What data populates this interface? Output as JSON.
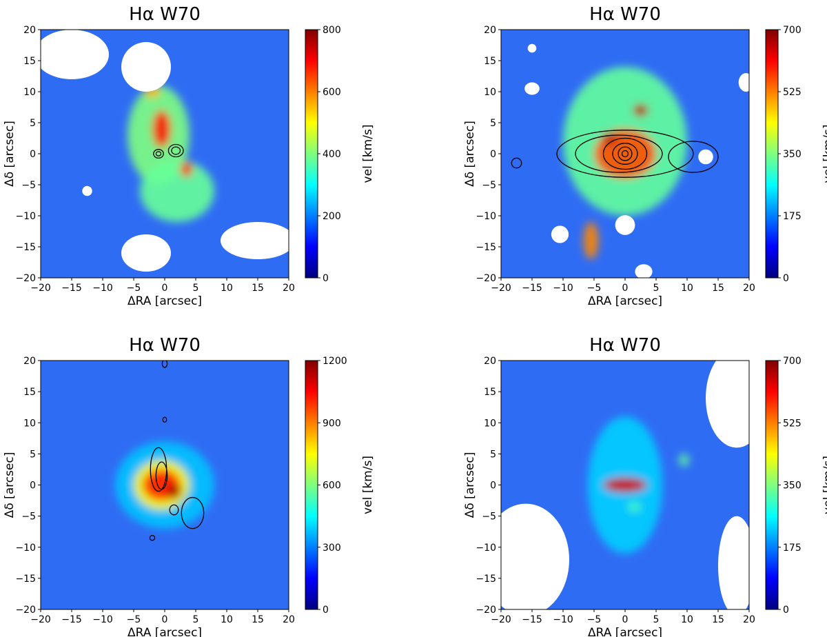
{
  "figure": {
    "panel_count": 4,
    "colormap": "jet",
    "colormap_stops": [
      "#00007f",
      "#0000ff",
      "#007fff",
      "#00ffff",
      "#7fff7f",
      "#ffff00",
      "#ff7f00",
      "#ff0000",
      "#7f0000"
    ],
    "map_background": "#2f6cf4"
  },
  "chart_data": [
    {
      "type": "heatmap",
      "title": "Hα W70",
      "xlabel": "ΔRA [arcsec]",
      "ylabel": "Δδ [arcsec]",
      "xlim": [
        -20,
        20
      ],
      "ylim": [
        -20,
        20
      ],
      "xticks": [
        -20,
        -15,
        -10,
        -5,
        0,
        5,
        10,
        15,
        20
      ],
      "yticks": [
        -20,
        -15,
        -10,
        -5,
        0,
        5,
        10,
        15,
        20
      ],
      "colorbar": {
        "label": "vel [km/s]",
        "min": 0,
        "max": 800,
        "ticks": [
          0,
          200,
          400,
          600,
          800
        ]
      },
      "features": [
        {
          "name": "masked-region",
          "cx": -15,
          "cy": 16,
          "rx": 6,
          "ry": 4
        },
        {
          "name": "masked-region",
          "cx": -3,
          "cy": 14,
          "rx": 4,
          "ry": 4
        },
        {
          "name": "masked-region",
          "cx": -3,
          "cy": -16,
          "rx": 4,
          "ry": 3
        },
        {
          "name": "masked-region",
          "cx": 15,
          "cy": -14,
          "rx": 6,
          "ry": 3
        },
        {
          "name": "masked-region",
          "cx": -12.5,
          "cy": -6,
          "rx": 0.8,
          "ry": 0.8
        },
        {
          "name": "emission-blob",
          "cx": -1,
          "cy": 3,
          "rx": 5,
          "ry": 8,
          "value": 400
        },
        {
          "name": "emission-blob",
          "cx": 2,
          "cy": -6,
          "rx": 6,
          "ry": 5,
          "value": 380
        },
        {
          "name": "emission-blob",
          "cx": -0.5,
          "cy": 4,
          "rx": 1.5,
          "ry": 3,
          "value": 680
        },
        {
          "name": "emission-blob",
          "cx": 3.5,
          "cy": -2.5,
          "rx": 1,
          "ry": 1.2,
          "value": 680
        },
        {
          "name": "emission-blob",
          "cx": -2,
          "cy": 10,
          "rx": 1.2,
          "ry": 1,
          "value": 560
        }
      ],
      "contours": [
        {
          "cx": 1.8,
          "cy": 0.5,
          "rx": 1.2,
          "ry": 1.0
        },
        {
          "cx": 1.8,
          "cy": 0.5,
          "rx": 0.7,
          "ry": 0.6
        },
        {
          "cx": -1,
          "cy": 0,
          "rx": 0.8,
          "ry": 0.7
        },
        {
          "cx": -1,
          "cy": 0,
          "rx": 0.4,
          "ry": 0.35
        }
      ]
    },
    {
      "type": "heatmap",
      "title": "Hα W70",
      "xlabel": "ΔRA [arcsec]",
      "ylabel": "Δδ [arcsec]",
      "xlim": [
        -20,
        20
      ],
      "ylim": [
        -20,
        20
      ],
      "xticks": [
        -20,
        -15,
        -10,
        -5,
        0,
        5,
        10,
        15,
        20
      ],
      "yticks": [
        -20,
        -15,
        -10,
        -5,
        0,
        5,
        10,
        15,
        20
      ],
      "colorbar": {
        "label": "vel [km/s]",
        "min": 0,
        "max": 700,
        "ticks": [
          0,
          175,
          350,
          525,
          700
        ]
      },
      "features": [
        {
          "name": "masked-region",
          "cx": -15,
          "cy": 17,
          "rx": 0.7,
          "ry": 0.7
        },
        {
          "name": "masked-region",
          "cx": -15,
          "cy": 10.5,
          "rx": 1.2,
          "ry": 1.0
        },
        {
          "name": "masked-region",
          "cx": 19.5,
          "cy": 11.5,
          "rx": 1.2,
          "ry": 1.5
        },
        {
          "name": "masked-region",
          "cx": 13,
          "cy": -0.5,
          "rx": 1.2,
          "ry": 1.2
        },
        {
          "name": "masked-region",
          "cx": 0,
          "cy": -11.5,
          "rx": 1.6,
          "ry": 1.6
        },
        {
          "name": "masked-region",
          "cx": -10.5,
          "cy": -13,
          "rx": 1.4,
          "ry": 1.4
        },
        {
          "name": "masked-region",
          "cx": 3,
          "cy": -19,
          "rx": 1.4,
          "ry": 1.2
        },
        {
          "name": "emission-blob",
          "cx": 0,
          "cy": 2,
          "rx": 10,
          "ry": 12,
          "value": 330
        },
        {
          "name": "emission-blob",
          "cx": 0,
          "cy": 0,
          "rx": 5,
          "ry": 4,
          "value": 560
        },
        {
          "name": "emission-blob",
          "cx": -2.5,
          "cy": 2.5,
          "rx": 1.2,
          "ry": 1,
          "value": 660
        },
        {
          "name": "emission-blob",
          "cx": 2.5,
          "cy": 7,
          "rx": 1.2,
          "ry": 1,
          "value": 660
        },
        {
          "name": "emission-blob",
          "cx": -5.5,
          "cy": -14,
          "rx": 1.2,
          "ry": 3,
          "value": 520
        }
      ],
      "contours": [
        {
          "cx": 0,
          "cy": 0,
          "rx": 0.5,
          "ry": 0.5
        },
        {
          "cx": 0,
          "cy": 0,
          "rx": 1.1,
          "ry": 1.1
        },
        {
          "cx": 0,
          "cy": 0,
          "rx": 2.0,
          "ry": 1.7
        },
        {
          "cx": 0,
          "cy": 0,
          "rx": 3.5,
          "ry": 2.5
        },
        {
          "cx": -1,
          "cy": 0,
          "rx": 7,
          "ry": 3
        },
        {
          "cx": 0,
          "cy": 0,
          "rx": 11,
          "ry": 3.8
        },
        {
          "cx": 11,
          "cy": -0.5,
          "rx": 4,
          "ry": 2.5
        },
        {
          "cx": -17.5,
          "cy": -1.5,
          "rx": 0.8,
          "ry": 0.8
        }
      ]
    },
    {
      "type": "heatmap",
      "title": "Hα W70",
      "xlabel": "ΔRA [arcsec]",
      "ylabel": "Δδ [arcsec]",
      "xlim": [
        -20,
        20
      ],
      "ylim": [
        -20,
        20
      ],
      "xticks": [
        -20,
        -15,
        -10,
        -5,
        0,
        5,
        10,
        15,
        20
      ],
      "yticks": [
        -20,
        -15,
        -10,
        -5,
        0,
        5,
        10,
        15,
        20
      ],
      "colorbar": {
        "label": "vel [km/s]",
        "min": 0,
        "max": 1200,
        "ticks": [
          0,
          300,
          600,
          900,
          1200
        ]
      },
      "features": [
        {
          "name": "emission-blob",
          "cx": 0,
          "cy": 0,
          "rx": 8,
          "ry": 7,
          "value": 380
        },
        {
          "name": "emission-blob",
          "cx": -0.5,
          "cy": 0,
          "rx": 4.5,
          "ry": 4,
          "value": 760
        },
        {
          "name": "emission-blob",
          "cx": -0.5,
          "cy": 0,
          "rx": 3,
          "ry": 2.5,
          "value": 1020
        },
        {
          "name": "emission-blob",
          "cx": 1.5,
          "cy": -1,
          "rx": 1.2,
          "ry": 1.2,
          "value": 1150
        }
      ],
      "contours": [
        {
          "cx": -1,
          "cy": 2.5,
          "rx": 1.3,
          "ry": 3.5
        },
        {
          "cx": -0.5,
          "cy": 1.5,
          "rx": 0.9,
          "ry": 2.2
        },
        {
          "cx": 1.5,
          "cy": -4,
          "rx": 0.7,
          "ry": 0.8
        },
        {
          "cx": 4.5,
          "cy": -4.5,
          "rx": 1.8,
          "ry": 2.5
        },
        {
          "cx": 0,
          "cy": 19.5,
          "rx": 0.4,
          "ry": 0.6
        },
        {
          "cx": 0,
          "cy": 10.5,
          "rx": 0.3,
          "ry": 0.4
        },
        {
          "cx": -2,
          "cy": -8.5,
          "rx": 0.4,
          "ry": 0.4
        }
      ]
    },
    {
      "type": "heatmap",
      "title": "Hα W70",
      "xlabel": "ΔRA [arcsec]",
      "ylabel": "Δδ [arcsec]",
      "xlim": [
        -20,
        20
      ],
      "ylim": [
        -20,
        20
      ],
      "xticks": [
        -20,
        -15,
        -10,
        -5,
        0,
        5,
        10,
        15,
        20
      ],
      "yticks": [
        -20,
        -15,
        -10,
        -5,
        0,
        5,
        10,
        15,
        20
      ],
      "colorbar": {
        "label": "vel [km/s]",
        "min": 0,
        "max": 700,
        "ticks": [
          0,
          175,
          350,
          525,
          700
        ]
      },
      "features": [
        {
          "name": "masked-region",
          "cx": -16,
          "cy": -12,
          "rx": 7,
          "ry": 9
        },
        {
          "name": "masked-region",
          "cx": 18,
          "cy": 14,
          "rx": 5,
          "ry": 8
        },
        {
          "name": "masked-region",
          "cx": 18,
          "cy": -13,
          "rx": 3,
          "ry": 8
        },
        {
          "name": "emission-blob",
          "cx": 0,
          "cy": 0,
          "rx": 6,
          "ry": 11,
          "value": 230
        },
        {
          "name": "emission-blob",
          "cx": 0,
          "cy": 0,
          "rx": 3.5,
          "ry": 1.2,
          "value": 640
        },
        {
          "name": "emission-blob",
          "cx": 9.5,
          "cy": 4,
          "rx": 0.8,
          "ry": 1,
          "value": 330
        },
        {
          "name": "emission-blob",
          "cx": 1.5,
          "cy": -3.5,
          "rx": 1,
          "ry": 0.8,
          "value": 310
        }
      ],
      "contours": []
    }
  ]
}
